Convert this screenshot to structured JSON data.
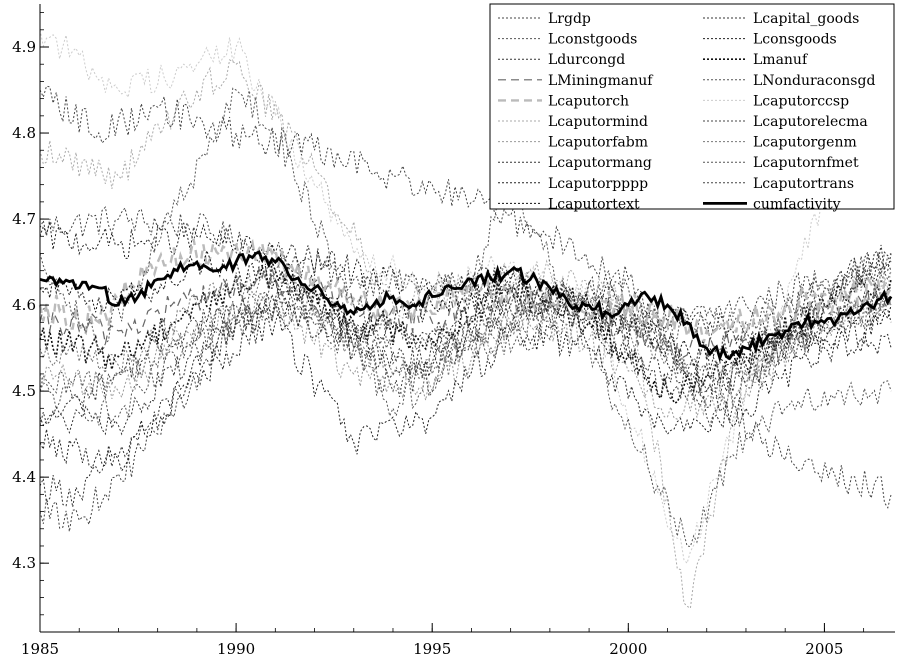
{
  "chart_data": {
    "type": "line",
    "title": "",
    "xlabel": "",
    "ylabel": "",
    "xlim": [
      1985,
      2006.8
    ],
    "ylim": [
      4.22,
      4.95
    ],
    "grid": false,
    "legend_placement": "top-right",
    "x_ticks": [
      {
        "value": 1985,
        "label": "1985"
      },
      {
        "value": 1990,
        "label": "1990"
      },
      {
        "value": 1995,
        "label": "1995"
      },
      {
        "value": 2000,
        "label": "2000"
      },
      {
        "value": 2005,
        "label": "2005"
      }
    ],
    "y_ticks": [
      {
        "value": 4.3,
        "label": "4.3"
      },
      {
        "value": 4.4,
        "label": "4.4"
      },
      {
        "value": 4.5,
        "label": "4.5"
      },
      {
        "value": 4.6,
        "label": "4.6"
      },
      {
        "value": 4.7,
        "label": "4.7"
      },
      {
        "value": 4.8,
        "label": "4.8"
      },
      {
        "value": 4.9,
        "label": "4.9"
      }
    ],
    "series": [
      {
        "name": "Lrgdp",
        "color": "#444444",
        "style": "dotted",
        "width": 1,
        "x": [
          1985,
          1987,
          1989,
          1991,
          1993,
          1995,
          1997,
          1999,
          2001,
          2003,
          2005,
          2006.7
        ],
        "y": [
          4.69,
          4.7,
          4.69,
          4.66,
          4.63,
          4.62,
          4.63,
          4.6,
          4.58,
          4.6,
          4.63,
          4.65
        ]
      },
      {
        "name": "Lcapital_goods",
        "color": "#333333",
        "style": "dotted",
        "width": 1,
        "x": [
          1985,
          1986,
          1988,
          1990,
          1992,
          1994,
          1996,
          1998,
          2000,
          2001.5,
          2003,
          2005,
          2006.7
        ],
        "y": [
          4.39,
          4.38,
          4.47,
          4.58,
          4.62,
          4.52,
          4.57,
          4.62,
          4.6,
          4.49,
          4.51,
          4.6,
          4.66
        ]
      },
      {
        "name": "Lconstgoods",
        "color": "#555555",
        "style": "dotted",
        "width": 1,
        "x": [
          1985,
          1987,
          1989,
          1991,
          1993,
          1994,
          1996,
          1998,
          2000,
          2002,
          2004,
          2006.7
        ],
        "y": [
          4.5,
          4.47,
          4.56,
          4.63,
          4.55,
          4.48,
          4.55,
          4.56,
          4.6,
          4.5,
          4.55,
          4.6
        ]
      },
      {
        "name": "Lconsgoods",
        "color": "#222222",
        "style": "dotted",
        "width": 1,
        "x": [
          1985,
          1987,
          1989,
          1991,
          1993,
          1995,
          1997,
          1999,
          2001,
          2003,
          2005,
          2006.7
        ],
        "y": [
          4.68,
          4.67,
          4.68,
          4.66,
          4.64,
          4.62,
          4.63,
          4.6,
          4.58,
          4.57,
          4.56,
          4.55
        ]
      },
      {
        "name": "Ldurcongd",
        "color": "#333333",
        "style": "dotted",
        "width": 1,
        "x": [
          1985,
          1987,
          1989,
          1991,
          1993,
          1995,
          1997,
          1999,
          2001,
          2003,
          2005,
          2006.7
        ],
        "y": [
          4.46,
          4.52,
          4.58,
          4.6,
          4.56,
          4.57,
          4.62,
          4.58,
          4.52,
          4.56,
          4.62,
          4.66
        ]
      },
      {
        "name": "Lmanuf",
        "color": "#111111",
        "style": "dotted",
        "width": 1.6,
        "x": [
          1985,
          1987,
          1989,
          1991,
          1993,
          1995,
          1997,
          1999,
          2001,
          2003,
          2005,
          2006.7
        ],
        "y": [
          4.56,
          4.54,
          4.6,
          4.64,
          4.58,
          4.56,
          4.62,
          4.58,
          4.5,
          4.54,
          4.6,
          4.63
        ]
      },
      {
        "name": "LMiningmanuf",
        "color": "#666666",
        "style": "dashed",
        "width": 1.2,
        "x": [
          1985,
          1987,
          1989,
          1991,
          1993,
          1995,
          1997,
          1999,
          2001,
          2003,
          2005,
          2006.7
        ],
        "y": [
          4.58,
          4.57,
          4.61,
          4.63,
          4.6,
          4.58,
          4.61,
          4.59,
          4.55,
          4.56,
          4.59,
          4.61
        ]
      },
      {
        "name": "LNonduraconsgd",
        "color": "#555555",
        "style": "dotted",
        "width": 1,
        "x": [
          1985,
          1987,
          1989,
          1991,
          1993,
          1995,
          1997,
          1999,
          2001,
          2003,
          2005,
          2006.7
        ],
        "y": [
          4.5,
          4.52,
          4.56,
          4.6,
          4.58,
          4.55,
          4.58,
          4.6,
          4.57,
          4.58,
          4.62,
          4.64
        ]
      },
      {
        "name": "Lcaputorch",
        "color": "#bbbbbb",
        "style": "dashed",
        "width": 2.4,
        "x": [
          1985,
          1986.5,
          1988,
          1990,
          1992,
          1994,
          1996,
          1998,
          2000,
          2002,
          2004,
          2006.7
        ],
        "y": [
          4.6,
          4.58,
          4.65,
          4.67,
          4.63,
          4.59,
          4.62,
          4.6,
          4.6,
          4.57,
          4.6,
          4.62
        ]
      },
      {
        "name": "Lcaputorccsp",
        "color": "#cccccc",
        "style": "dotted",
        "width": 1,
        "x": [
          1985,
          1987,
          1989,
          1990,
          1991,
          1993,
          1995,
          1997,
          1999,
          2001.5,
          2003,
          2005,
          2006.7
        ],
        "y": [
          4.92,
          4.85,
          4.88,
          4.9,
          4.82,
          4.66,
          4.62,
          4.65,
          4.6,
          4.3,
          4.5,
          4.72,
          4.8
        ]
      },
      {
        "name": "Lcaputormind",
        "color": "#aaaaaa",
        "style": "dotted",
        "width": 1,
        "x": [
          1985,
          1987,
          1989,
          1990,
          1992,
          1994,
          1996,
          1998,
          2000,
          2001.5,
          2003,
          2005,
          2006.7
        ],
        "y": [
          4.78,
          4.75,
          4.85,
          4.88,
          4.76,
          4.6,
          4.62,
          4.64,
          4.6,
          4.25,
          4.52,
          4.6,
          4.64
        ]
      },
      {
        "name": "Lcaputorelecma",
        "color": "#444444",
        "style": "dotted",
        "width": 1,
        "x": [
          1985,
          1986,
          1988,
          1990,
          1992,
          1994,
          1996,
          1998,
          2000,
          2002,
          2004,
          2006.7
        ],
        "y": [
          4.36,
          4.35,
          4.45,
          4.58,
          4.6,
          4.5,
          4.56,
          4.6,
          4.63,
          4.47,
          4.55,
          4.62
        ]
      },
      {
        "name": "Lcaputorfabm",
        "color": "#999999",
        "style": "dotted",
        "width": 1,
        "x": [
          1985,
          1987,
          1989,
          1991,
          1993,
          1995,
          1997,
          1999,
          2001,
          2003,
          2005,
          2006.7
        ],
        "y": [
          4.52,
          4.5,
          4.58,
          4.6,
          4.52,
          4.5,
          4.58,
          4.56,
          4.47,
          4.5,
          4.58,
          4.6
        ]
      },
      {
        "name": "Lcaputorgenm",
        "color": "#777777",
        "style": "dotted",
        "width": 1,
        "x": [
          1985,
          1987,
          1989,
          1991,
          1993,
          1995,
          1997,
          1999,
          2001,
          2003,
          2005,
          2006.7
        ],
        "y": [
          4.55,
          4.53,
          4.6,
          4.64,
          4.55,
          4.52,
          4.58,
          4.6,
          4.54,
          4.52,
          4.58,
          4.6
        ]
      },
      {
        "name": "Lcaputormang",
        "color": "#333333",
        "style": "dotted",
        "width": 1,
        "x": [
          1985,
          1987,
          1989,
          1991,
          1993,
          1995,
          1997,
          1999,
          2001,
          2003,
          2005,
          2006.7
        ],
        "y": [
          4.47,
          4.46,
          4.55,
          4.6,
          4.55,
          4.53,
          4.6,
          4.58,
          4.5,
          4.53,
          4.6,
          4.64
        ]
      },
      {
        "name": "Lcaputornfmet",
        "color": "#555555",
        "style": "dotted",
        "width": 1,
        "x": [
          1985,
          1986.5,
          1988,
          1990,
          1991,
          1993,
          1995,
          1997,
          1999,
          2001.5,
          2003,
          2005,
          2006.7
        ],
        "y": [
          4.66,
          4.55,
          4.67,
          4.85,
          4.8,
          4.6,
          4.5,
          4.75,
          4.55,
          4.32,
          4.45,
          4.5,
          4.5
        ]
      },
      {
        "name": "Lcaputorpppp",
        "color": "#222222",
        "style": "dotted",
        "width": 1,
        "x": [
          1985,
          1987,
          1989,
          1991,
          1993,
          1995,
          1997,
          1999,
          2001,
          2003,
          2005,
          2006.7
        ],
        "y": [
          4.44,
          4.42,
          4.52,
          4.58,
          4.44,
          4.47,
          4.57,
          4.55,
          4.45,
          4.48,
          4.55,
          4.58
        ]
      },
      {
        "name": "Lcaputortrans",
        "color": "#444444",
        "style": "dotted",
        "width": 1,
        "x": [
          1985,
          1986.5,
          1988,
          1990,
          1992,
          1994,
          1996,
          1998,
          2000,
          2002,
          2004,
          2006.7
        ],
        "y": [
          4.85,
          4.8,
          4.83,
          4.8,
          4.78,
          4.75,
          4.72,
          4.68,
          4.62,
          4.5,
          4.42,
          4.38
        ]
      },
      {
        "name": "Lcaputortext",
        "color": "#111111",
        "style": "dotted",
        "width": 1,
        "x": [
          1985,
          1987,
          1989,
          1991,
          1993,
          1995,
          1997,
          1999,
          2001,
          2003,
          2005,
          2006.7
        ],
        "y": [
          4.62,
          4.6,
          4.65,
          4.63,
          4.57,
          4.6,
          4.62,
          4.6,
          4.55,
          4.53,
          4.57,
          4.6
        ]
      },
      {
        "name": "cumfactivity",
        "color": "#000000",
        "style": "solid",
        "width": 2.8,
        "x": [
          1985,
          1985.5,
          1986,
          1986.5,
          1987,
          1987.5,
          1988,
          1988.5,
          1989,
          1989.5,
          1990,
          1990.5,
          1991,
          1991.5,
          1992,
          1992.5,
          1993,
          1993.5,
          1994,
          1994.5,
          1995,
          1995.5,
          1996,
          1996.5,
          1997,
          1997.5,
          1998,
          1998.5,
          1999,
          1999.5,
          2000,
          2000.5,
          2001,
          2001.5,
          2002,
          2002.5,
          2003,
          2003.5,
          2004,
          2004.5,
          2005,
          2005.5,
          2006,
          2006.7
        ],
        "y": [
          4.63,
          4.63,
          4.62,
          4.62,
          4.6,
          4.61,
          4.63,
          4.64,
          4.65,
          4.64,
          4.65,
          4.66,
          4.65,
          4.63,
          4.62,
          4.6,
          4.59,
          4.6,
          4.61,
          4.6,
          4.61,
          4.62,
          4.63,
          4.63,
          4.64,
          4.63,
          4.62,
          4.6,
          4.6,
          4.59,
          4.6,
          4.61,
          4.6,
          4.58,
          4.55,
          4.54,
          4.55,
          4.56,
          4.57,
          4.58,
          4.58,
          4.59,
          4.6,
          4.61
        ]
      }
    ]
  }
}
